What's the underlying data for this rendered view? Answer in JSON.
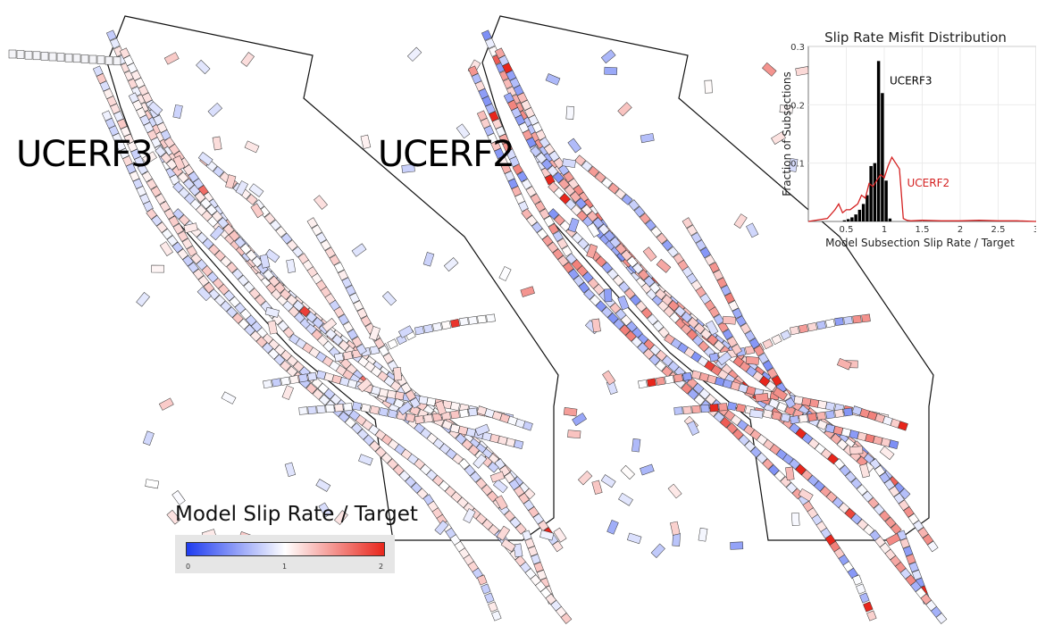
{
  "panels": {
    "left_label": "UCERF3",
    "right_label": "UCERF2"
  },
  "colorbar": {
    "title": "Model Slip Rate / Target",
    "ticks": [
      "0",
      "1",
      "2"
    ],
    "min_color": "#1f3cf0",
    "mid_color": "#ffffff",
    "max_color": "#e8261c"
  },
  "chart_data": {
    "type": "bar",
    "title": "Slip Rate Misfit Distribution",
    "xlabel": "Model Subsection Slip Rate / Target",
    "ylabel": "Fraction of Subsections",
    "xlim": [
      0,
      3
    ],
    "ylim": [
      0,
      0.3
    ],
    "xticks": [
      "0.5",
      "1",
      "1.5",
      "2",
      "2.5",
      "3"
    ],
    "yticks": [
      "0.1",
      "0.2",
      "0.3"
    ],
    "grid": true,
    "series": [
      {
        "name": "UCERF3",
        "style": "bars",
        "color": "#000000",
        "bin_width": 0.05,
        "x": [
          0.475,
          0.525,
          0.575,
          0.625,
          0.675,
          0.725,
          0.775,
          0.825,
          0.875,
          0.925,
          0.975,
          1.025,
          1.075
        ],
        "values": [
          0.002,
          0.004,
          0.007,
          0.012,
          0.02,
          0.03,
          0.045,
          0.095,
          0.1,
          0.275,
          0.22,
          0.07,
          0.005
        ]
      },
      {
        "name": "UCERF2",
        "style": "line",
        "color": "#d42020",
        "x": [
          0.0,
          0.25,
          0.35,
          0.4,
          0.45,
          0.5,
          0.55,
          0.6,
          0.65,
          0.7,
          0.75,
          0.8,
          0.85,
          0.9,
          0.95,
          1.0,
          1.05,
          1.1,
          1.15,
          1.2,
          1.25,
          1.3,
          1.35,
          1.5,
          1.75,
          2.0,
          2.25,
          2.5,
          2.75,
          3.0
        ],
        "values": [
          0.0,
          0.005,
          0.02,
          0.03,
          0.015,
          0.02,
          0.02,
          0.025,
          0.03,
          0.045,
          0.04,
          0.065,
          0.06,
          0.07,
          0.08,
          0.075,
          0.095,
          0.11,
          0.1,
          0.09,
          0.005,
          0.002,
          0.001,
          0.002,
          0.001,
          0.001,
          0.002,
          0.001,
          0.001,
          0.0
        ]
      }
    ]
  }
}
